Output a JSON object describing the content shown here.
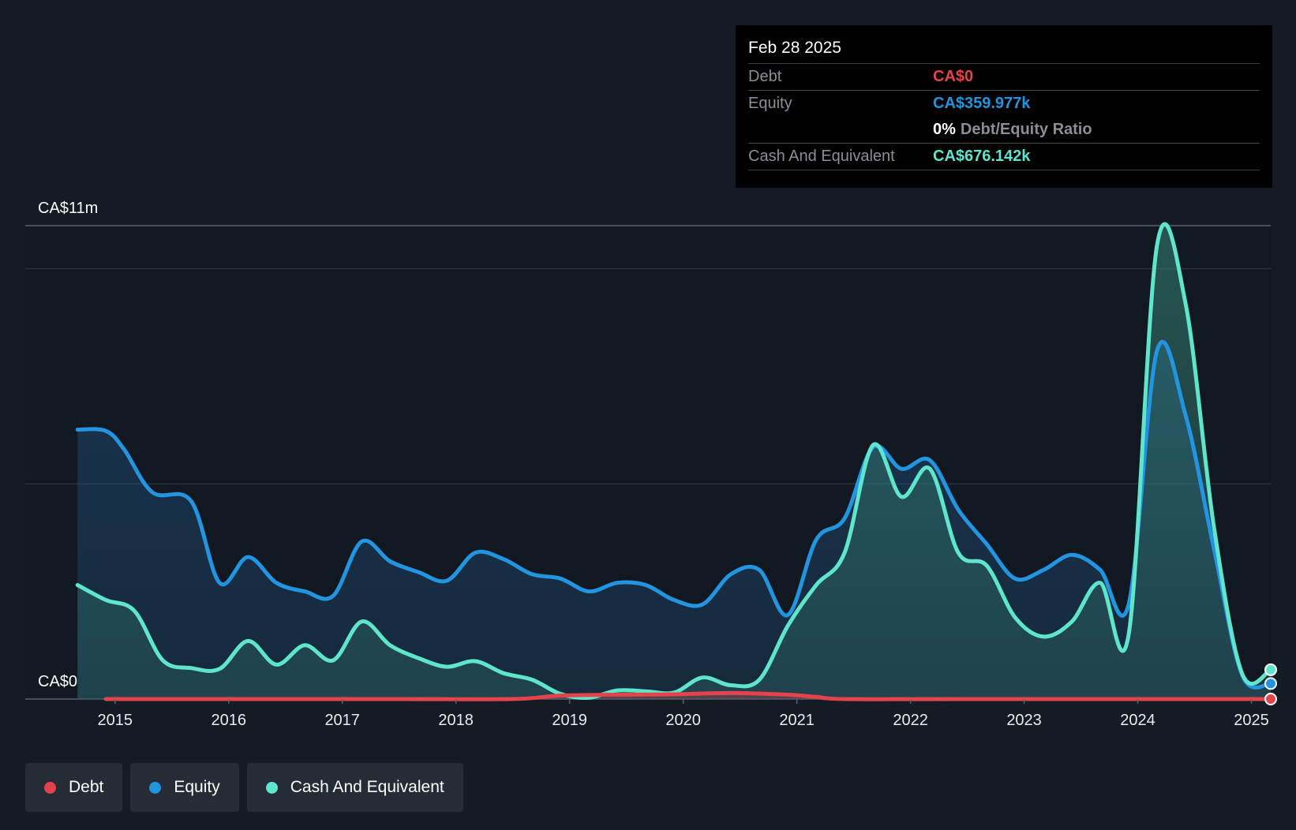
{
  "tooltip": {
    "date": "Feb 28 2025",
    "debt_label": "Debt",
    "debt_value": "CA$0",
    "equity_label": "Equity",
    "equity_value": "CA$359.977k",
    "ratio_value": "0%",
    "ratio_label": "Debt/Equity Ratio",
    "cash_label": "Cash And Equivalent",
    "cash_value": "CA$676.142k"
  },
  "legend": [
    {
      "label": "Debt",
      "color": "#e5434b"
    },
    {
      "label": "Equity",
      "color": "#2394df"
    },
    {
      "label": "Cash And Equivalent",
      "color": "#5ee5cc"
    }
  ],
  "chart_data": {
    "type": "area",
    "title": "",
    "xlabel": "",
    "ylabel": "",
    "ylim": [
      0,
      11
    ],
    "y_axis_labels": {
      "top": "CA$11m",
      "bottom": "CA$0"
    },
    "x_ticks": [
      "2015",
      "2016",
      "2017",
      "2018",
      "2019",
      "2020",
      "2021",
      "2022",
      "2023",
      "2024",
      "2025"
    ],
    "x_tick_values": [
      2015,
      2016,
      2017,
      2018,
      2019,
      2020,
      2021,
      2022,
      2023,
      2024,
      2025
    ],
    "xlim": [
      2014.21,
      2025.17
    ],
    "colors": {
      "debt": "#e5434b",
      "equity": "#2394df",
      "cash": "#5ee5cc"
    },
    "series": [
      {
        "name": "Equity",
        "points": [
          [
            2014.67,
            6.26
          ],
          [
            2014.92,
            6.23
          ],
          [
            2015.08,
            5.8
          ],
          [
            2015.33,
            4.8
          ],
          [
            2015.67,
            4.6
          ],
          [
            2015.92,
            2.7
          ],
          [
            2016.17,
            3.3
          ],
          [
            2016.42,
            2.7
          ],
          [
            2016.67,
            2.5
          ],
          [
            2016.92,
            2.4
          ],
          [
            2017.17,
            3.66
          ],
          [
            2017.42,
            3.2
          ],
          [
            2017.67,
            2.95
          ],
          [
            2017.92,
            2.75
          ],
          [
            2018.17,
            3.4
          ],
          [
            2018.42,
            3.25
          ],
          [
            2018.67,
            2.9
          ],
          [
            2018.92,
            2.8
          ],
          [
            2019.17,
            2.5
          ],
          [
            2019.42,
            2.7
          ],
          [
            2019.67,
            2.65
          ],
          [
            2019.92,
            2.3
          ],
          [
            2020.17,
            2.2
          ],
          [
            2020.42,
            2.9
          ],
          [
            2020.67,
            3.0
          ],
          [
            2020.92,
            1.95
          ],
          [
            2021.17,
            3.7
          ],
          [
            2021.42,
            4.2
          ],
          [
            2021.67,
            5.85
          ],
          [
            2021.92,
            5.35
          ],
          [
            2022.17,
            5.55
          ],
          [
            2022.42,
            4.4
          ],
          [
            2022.67,
            3.6
          ],
          [
            2022.92,
            2.8
          ],
          [
            2023.17,
            3.0
          ],
          [
            2023.42,
            3.35
          ],
          [
            2023.67,
            3.0
          ],
          [
            2023.92,
            2.2
          ],
          [
            2024.17,
            8.1
          ],
          [
            2024.42,
            6.6
          ],
          [
            2024.67,
            3.5
          ],
          [
            2024.92,
            0.55
          ],
          [
            2025.17,
            0.36
          ]
        ]
      },
      {
        "name": "Cash And Equivalent",
        "points": [
          [
            2014.67,
            2.65
          ],
          [
            2014.92,
            2.3
          ],
          [
            2015.17,
            2.05
          ],
          [
            2015.42,
            0.9
          ],
          [
            2015.67,
            0.72
          ],
          [
            2015.92,
            0.7
          ],
          [
            2016.17,
            1.35
          ],
          [
            2016.42,
            0.8
          ],
          [
            2016.67,
            1.25
          ],
          [
            2016.92,
            0.9
          ],
          [
            2017.17,
            1.8
          ],
          [
            2017.42,
            1.25
          ],
          [
            2017.67,
            0.95
          ],
          [
            2017.92,
            0.75
          ],
          [
            2018.17,
            0.88
          ],
          [
            2018.42,
            0.6
          ],
          [
            2018.67,
            0.45
          ],
          [
            2018.92,
            0.12
          ],
          [
            2019.17,
            0.03
          ],
          [
            2019.42,
            0.2
          ],
          [
            2019.67,
            0.18
          ],
          [
            2019.92,
            0.15
          ],
          [
            2020.17,
            0.5
          ],
          [
            2020.42,
            0.32
          ],
          [
            2020.67,
            0.45
          ],
          [
            2020.92,
            1.7
          ],
          [
            2021.17,
            2.65
          ],
          [
            2021.42,
            3.4
          ],
          [
            2021.67,
            5.9
          ],
          [
            2021.92,
            4.7
          ],
          [
            2022.17,
            5.35
          ],
          [
            2022.42,
            3.4
          ],
          [
            2022.67,
            3.1
          ],
          [
            2022.92,
            1.9
          ],
          [
            2023.17,
            1.45
          ],
          [
            2023.42,
            1.8
          ],
          [
            2023.67,
            2.7
          ],
          [
            2023.92,
            1.5
          ],
          [
            2024.17,
            10.55
          ],
          [
            2024.42,
            9.2
          ],
          [
            2024.67,
            4.0
          ],
          [
            2024.92,
            0.58
          ],
          [
            2025.17,
            0.68
          ]
        ]
      },
      {
        "name": "Debt",
        "points": [
          [
            2014.92,
            0.0
          ],
          [
            2015.5,
            0.0
          ],
          [
            2016.5,
            0.0
          ],
          [
            2017.5,
            0.0
          ],
          [
            2018.5,
            0.0
          ],
          [
            2018.92,
            0.08
          ],
          [
            2019.42,
            0.1
          ],
          [
            2019.92,
            0.11
          ],
          [
            2020.42,
            0.14
          ],
          [
            2020.92,
            0.1
          ],
          [
            2021.17,
            0.05
          ],
          [
            2021.42,
            0.0
          ],
          [
            2022.5,
            0.0
          ],
          [
            2023.5,
            0.0
          ],
          [
            2024.5,
            0.0
          ],
          [
            2025.17,
            0.0
          ]
        ]
      }
    ]
  }
}
